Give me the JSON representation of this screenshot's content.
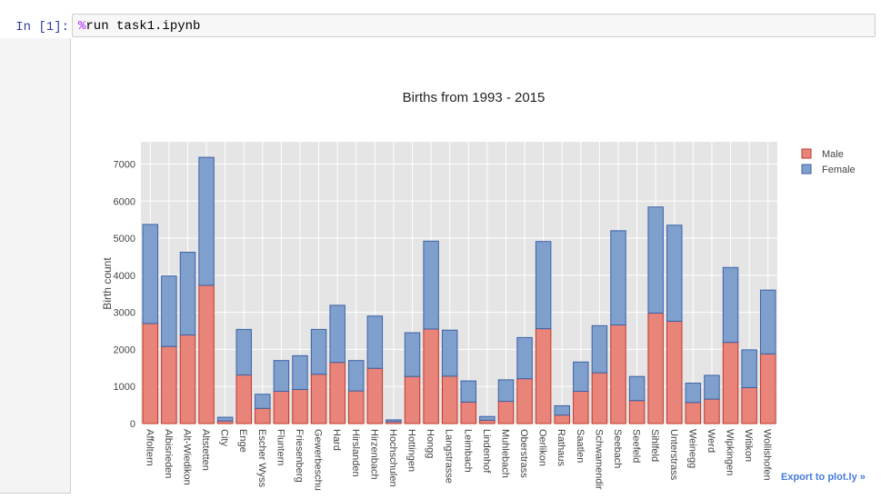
{
  "cell": {
    "prompt": "In [1]:",
    "magic": "%",
    "code": "run task1.ipynb"
  },
  "export_label": "Export to plot.ly »",
  "colors": {
    "male_fill": "#e8847a",
    "male_line": "#c0392b",
    "female_fill": "#7f9fcc",
    "female_line": "#3b62a8",
    "plot_bg": "#e5e5e5"
  },
  "chart_data": {
    "type": "bar",
    "barmode": "stack",
    "title": "Births from 1993 - 2015",
    "xlabel": "",
    "ylabel": "Birth count",
    "ylim": [
      0,
      7600
    ],
    "yticks": [
      0,
      1000,
      2000,
      3000,
      4000,
      5000,
      6000,
      7000
    ],
    "grid": true,
    "legend_position": "top-right",
    "categories": [
      "Affoltern",
      "Albisrieden",
      "Alt-Wiedikon",
      "Altstetten",
      "City",
      "Enge",
      "Escher Wyss",
      "Fluntern",
      "Friesenberg",
      "Gewerbeschu",
      "Hard",
      "Hirslanden",
      "Hirzenbach",
      "Hochschulen",
      "Hottingen",
      "Hongg",
      "Langstrasse",
      "Leimbach",
      "Lindenhof",
      "Muhlebach",
      "Oberstrass",
      "Oerlikon",
      "Rathaus",
      "Saatlen",
      "Schwamendir",
      "Seebach",
      "Seefeld",
      "Sihlfeld",
      "Unterstrass",
      "Weinegg",
      "Werd",
      "Wipkingen",
      "Witikon",
      "Wollishofen"
    ],
    "series": [
      {
        "name": "Male",
        "values": [
          2700,
          2080,
          2390,
          3730,
          70,
          1310,
          410,
          870,
          920,
          1330,
          1650,
          880,
          1490,
          50,
          1270,
          2550,
          1280,
          580,
          90,
          600,
          1210,
          2560,
          230,
          870,
          1370,
          2660,
          620,
          2980,
          2760,
          570,
          660,
          2190,
          970,
          1880
        ]
      },
      {
        "name": "Female",
        "values": [
          2670,
          1900,
          2230,
          3450,
          100,
          1230,
          380,
          830,
          910,
          1210,
          1540,
          820,
          1410,
          50,
          1180,
          2370,
          1240,
          570,
          100,
          580,
          1110,
          2350,
          250,
          790,
          1270,
          2540,
          650,
          2860,
          2590,
          520,
          640,
          2020,
          1020,
          1720
        ]
      }
    ]
  }
}
